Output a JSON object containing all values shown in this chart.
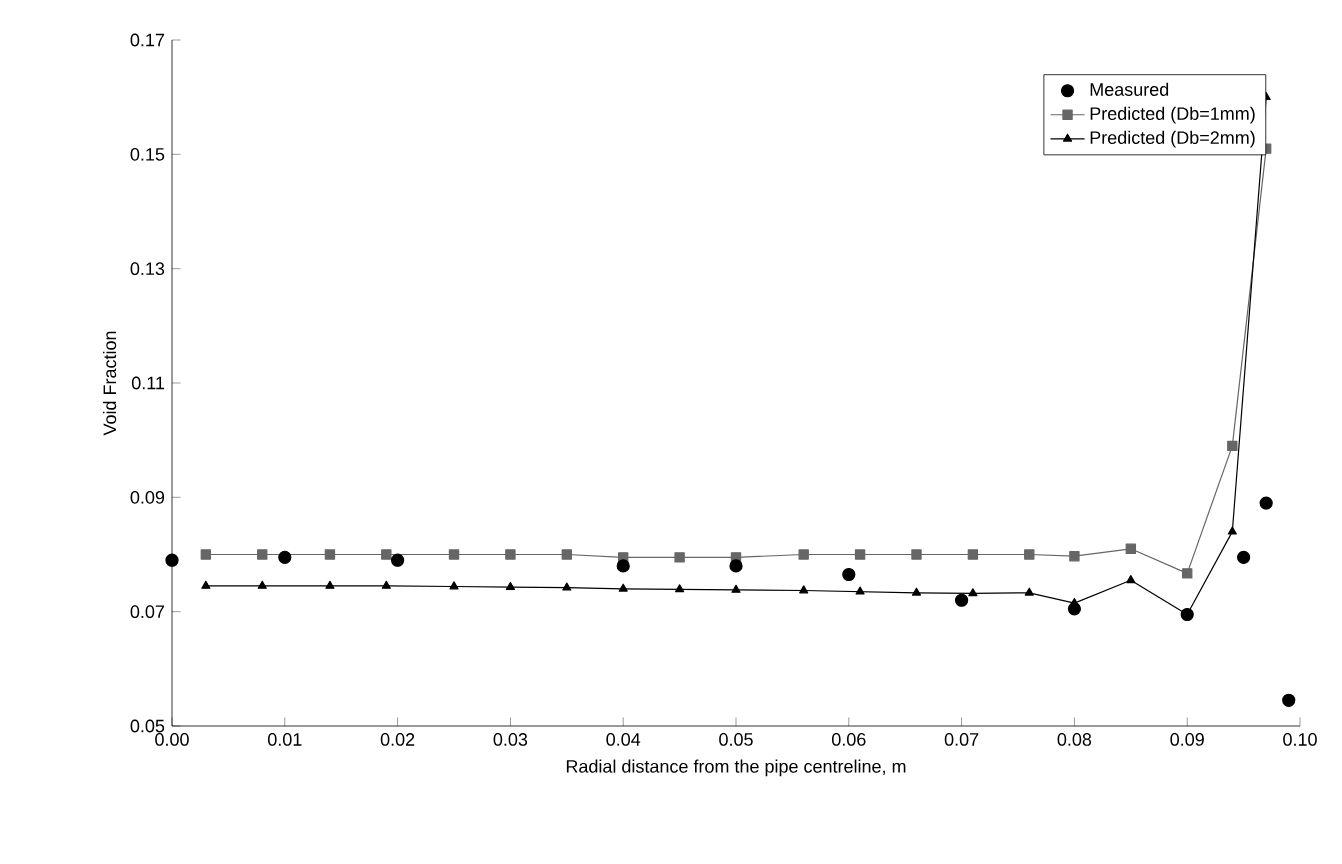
{
  "chart_data": {
    "type": "line",
    "xlabel": "Radial distance from the pipe centreline, m",
    "ylabel": "Void Fraction",
    "xlim": [
      0,
      0.1
    ],
    "xticks": [
      {
        "value": 0,
        "label": "0.00"
      },
      {
        "value": 0.01,
        "label": "0.01"
      },
      {
        "value": 0.02,
        "label": "0.02"
      },
      {
        "value": 0.03,
        "label": "0.03"
      },
      {
        "value": 0.04,
        "label": "0.04"
      },
      {
        "value": 0.05,
        "label": "0.05"
      },
      {
        "value": 0.06,
        "label": "0.06"
      },
      {
        "value": 0.07,
        "label": "0.07"
      },
      {
        "value": 0.08,
        "label": "0.08"
      },
      {
        "value": 0.09,
        "label": "0.09"
      },
      {
        "value": 0.1,
        "label": "0.10"
      }
    ],
    "ylim": [
      0.05,
      0.17
    ],
    "yticks": [
      0.05,
      0.07,
      0.09,
      0.11,
      0.13,
      0.15,
      0.17
    ],
    "legend": "top right",
    "grid": false,
    "series": [
      {
        "name": "Measured",
        "type": "scatter",
        "marker": "circle",
        "color": "#000000",
        "x": [
          0,
          0.01,
          0.02,
          0.04,
          0.05,
          0.06,
          0.07,
          0.08,
          0.09,
          0.095,
          0.097,
          0.099
        ],
        "values": [
          0.079,
          0.0795,
          0.079,
          0.078,
          0.078,
          0.0765,
          0.072,
          0.0705,
          0.0695,
          0.0795,
          0.089,
          0.0545
        ]
      },
      {
        "name": "Predicted (Db=1mm)",
        "marker": "square",
        "color": "#666666",
        "x": [
          0.003,
          0.008,
          0.014,
          0.019,
          0.025,
          0.03,
          0.035,
          0.04,
          0.045,
          0.05,
          0.056,
          0.061,
          0.066,
          0.071,
          0.076,
          0.08,
          0.085,
          0.09,
          0.094,
          0.097
        ],
        "values": [
          0.08,
          0.08,
          0.08,
          0.08,
          0.08,
          0.08,
          0.08,
          0.0795,
          0.0795,
          0.0795,
          0.08,
          0.08,
          0.08,
          0.08,
          0.08,
          0.0797,
          0.081,
          0.0767,
          0.099,
          0.151
        ]
      },
      {
        "name": "Predicted (Db=2mm)",
        "marker": "triangle",
        "color": "#000000",
        "x": [
          0.003,
          0.008,
          0.014,
          0.019,
          0.025,
          0.03,
          0.035,
          0.04,
          0.045,
          0.05,
          0.056,
          0.061,
          0.066,
          0.071,
          0.076,
          0.08,
          0.085,
          0.09,
          0.094,
          0.097
        ],
        "values": [
          0.0745,
          0.0745,
          0.0745,
          0.0745,
          0.0744,
          0.0743,
          0.0742,
          0.074,
          0.0739,
          0.0738,
          0.0737,
          0.0735,
          0.0733,
          0.0732,
          0.0733,
          0.0715,
          0.0755,
          0.0695,
          0.084,
          0.16
        ]
      }
    ]
  }
}
